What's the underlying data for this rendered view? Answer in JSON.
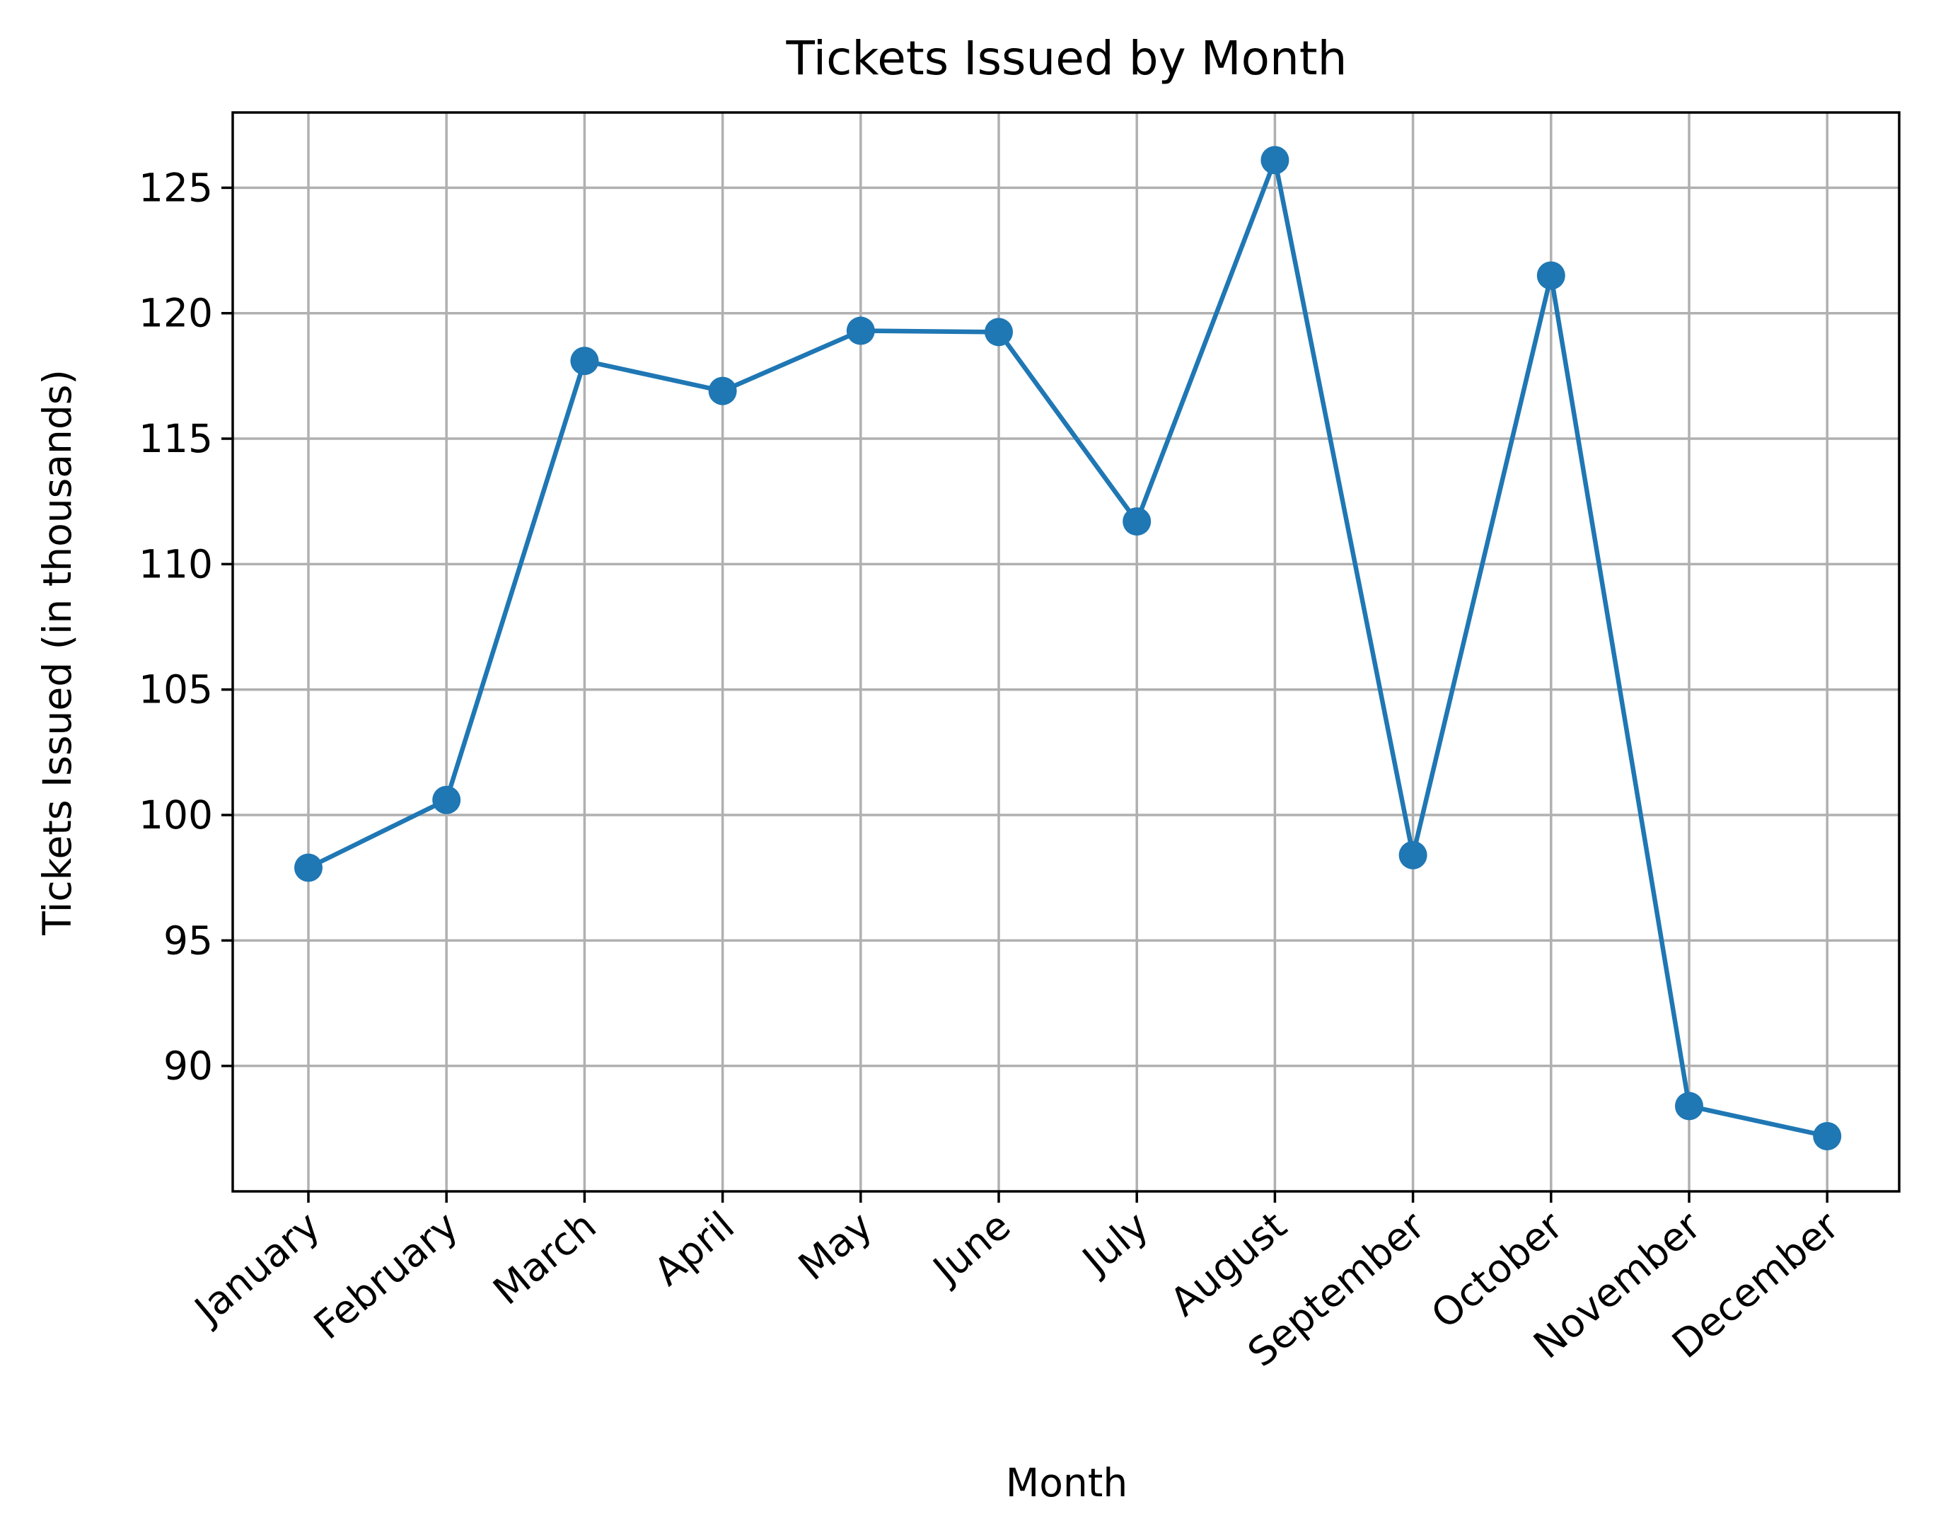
{
  "chart_data": {
    "type": "line",
    "title": "Tickets Issued by Month",
    "xlabel": "Month",
    "ylabel": "Tickets Issued (in thousands)",
    "categories": [
      "January",
      "February",
      "March",
      "April",
      "May",
      "June",
      "July",
      "August",
      "September",
      "October",
      "November",
      "December"
    ],
    "series": [
      {
        "values": [
          97.9,
          100.6,
          118.1,
          116.9,
          119.3,
          119.25,
          111.7,
          126.1,
          98.4,
          121.5,
          88.4,
          87.2
        ]
      }
    ],
    "y_ticks": [
      90,
      95,
      100,
      105,
      110,
      115,
      120,
      125
    ],
    "ylim": [
      85.0,
      128.0
    ],
    "grid": true,
    "marker": "circle",
    "color": "#1f77b4"
  }
}
